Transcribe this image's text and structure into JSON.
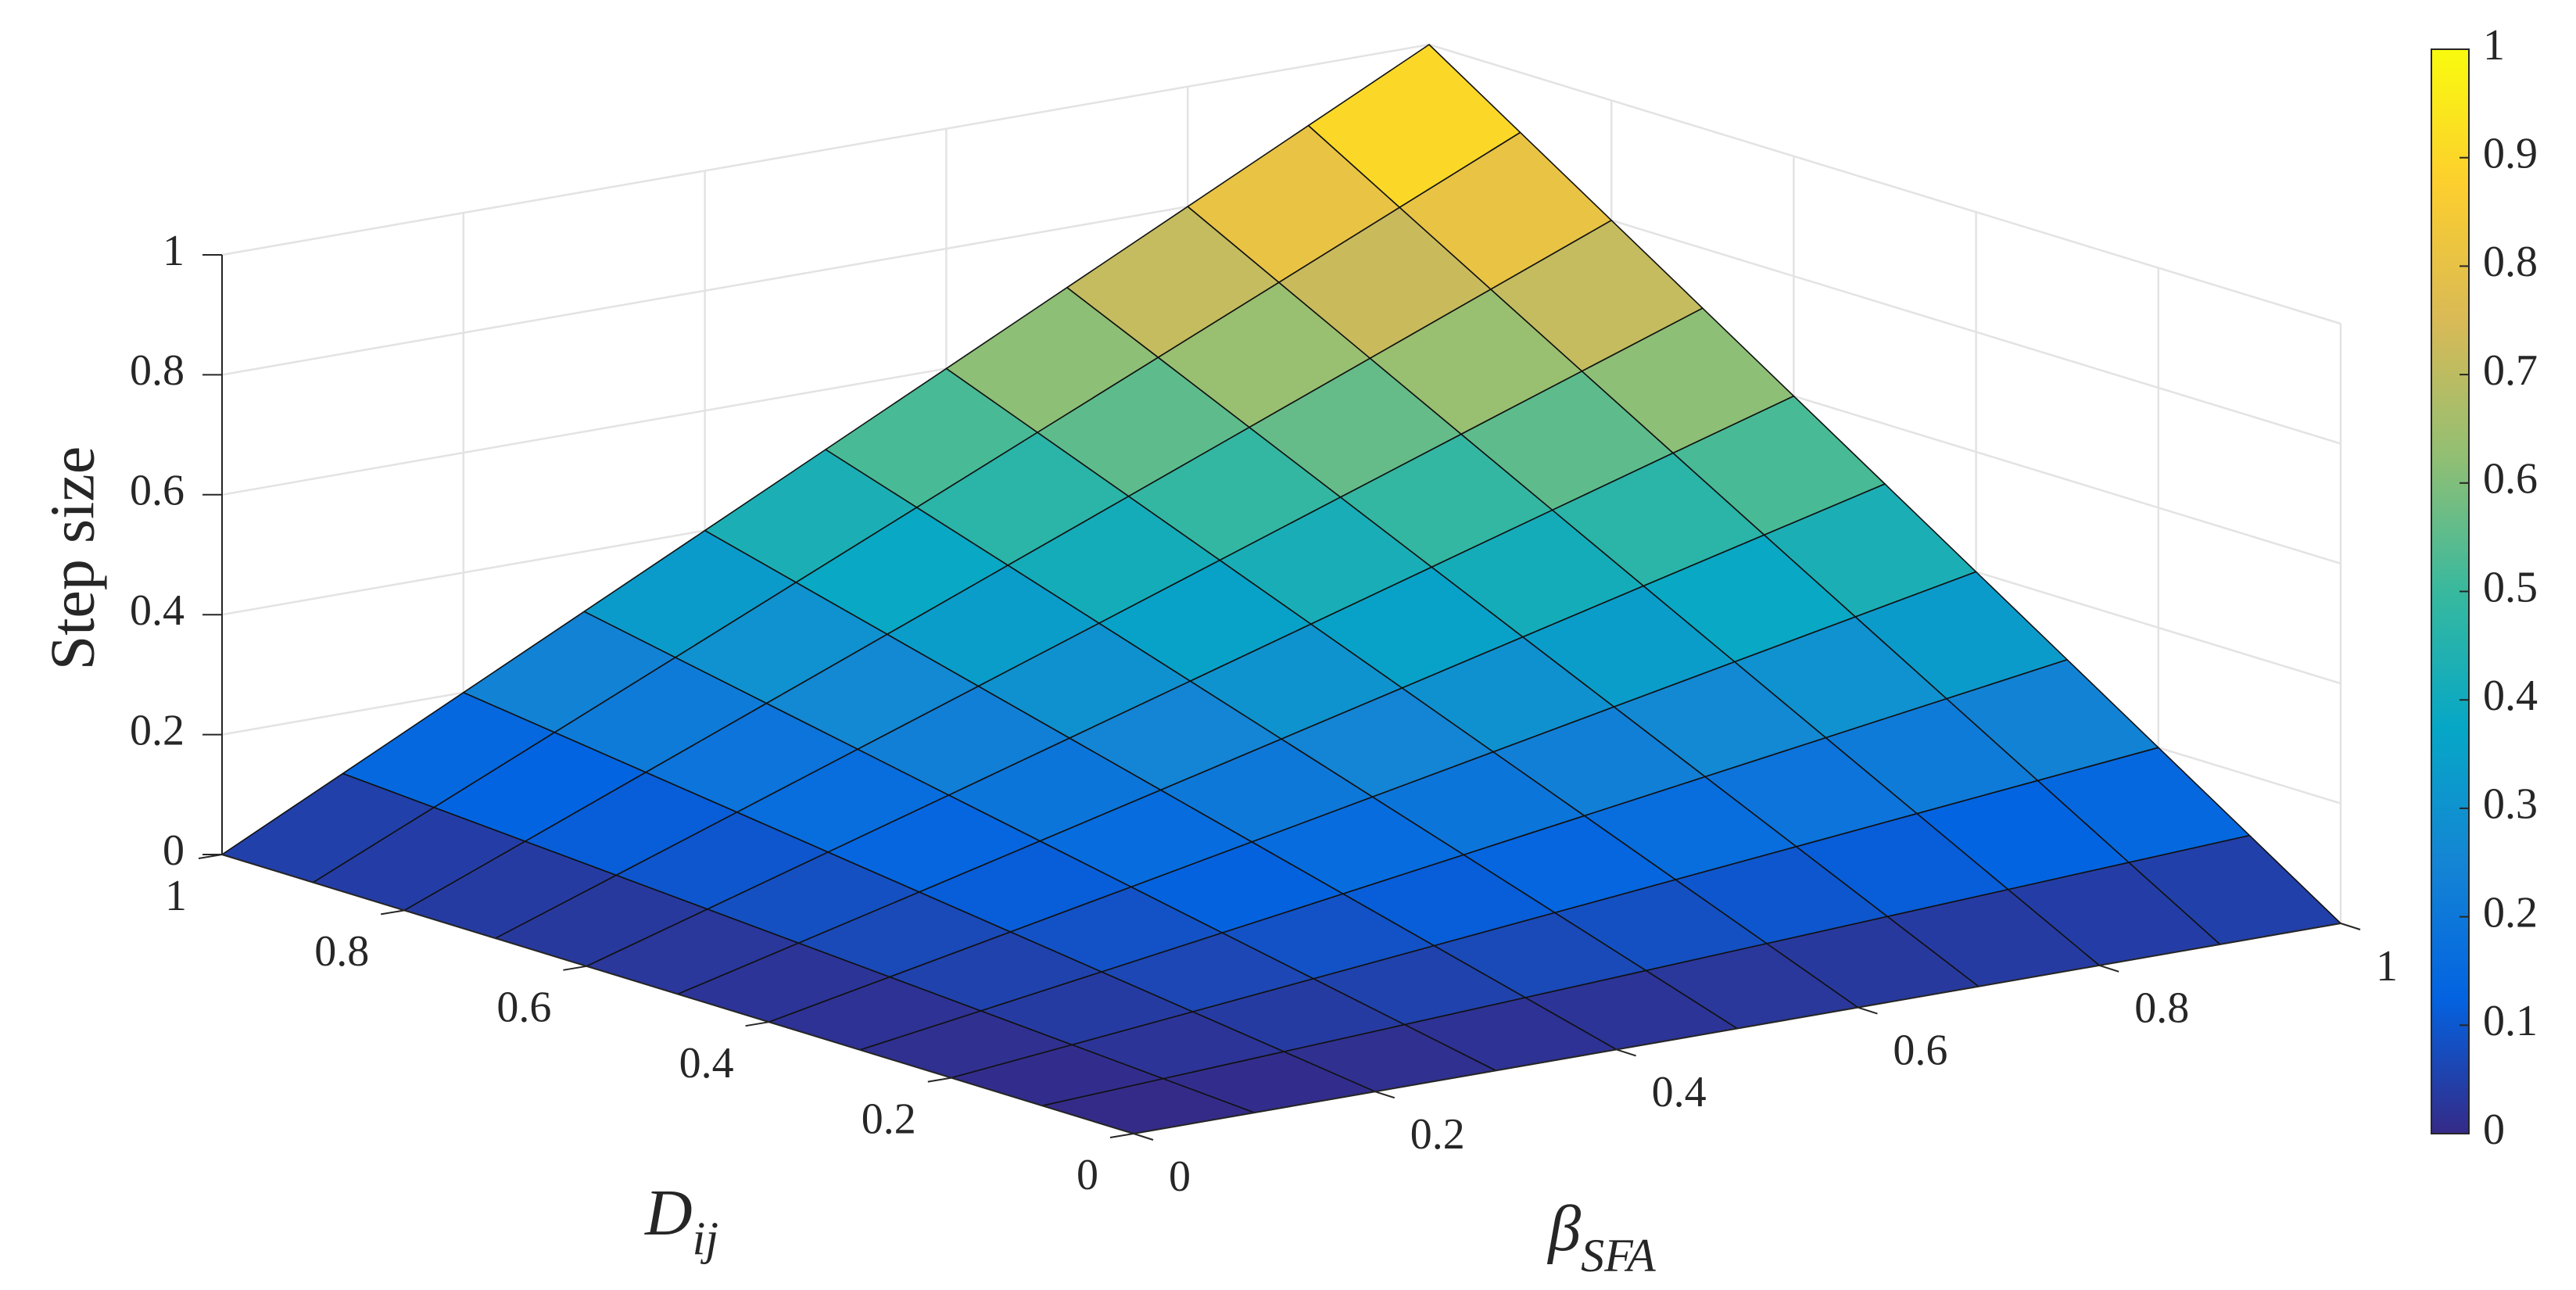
{
  "chart_data": {
    "type": "surface",
    "xlabel": {
      "text": "D",
      "subscript": "ij"
    },
    "ylabel": {
      "text": "β",
      "subscript": "SFA"
    },
    "zlabel": "Step size",
    "x": [
      0,
      0.1,
      0.2,
      0.3,
      0.4,
      0.5,
      0.6,
      0.7,
      0.8,
      0.9,
      1
    ],
    "y": [
      0,
      0.1,
      0.2,
      0.3,
      0.4,
      0.5,
      0.6,
      0.7,
      0.8,
      0.9,
      1
    ],
    "z": [
      [
        0,
        0,
        0,
        0,
        0,
        0,
        0,
        0,
        0,
        0,
        0
      ],
      [
        0,
        0.01,
        0.02,
        0.03,
        0.04,
        0.05,
        0.06,
        0.07,
        0.08,
        0.09,
        0.1
      ],
      [
        0,
        0.02,
        0.04,
        0.06,
        0.08,
        0.1,
        0.12,
        0.14,
        0.16,
        0.18,
        0.2
      ],
      [
        0,
        0.03,
        0.06,
        0.09,
        0.12,
        0.15,
        0.18,
        0.21,
        0.24,
        0.27,
        0.3
      ],
      [
        0,
        0.04,
        0.08,
        0.12,
        0.16,
        0.2,
        0.24,
        0.28,
        0.32,
        0.36,
        0.4
      ],
      [
        0,
        0.05,
        0.1,
        0.15,
        0.2,
        0.25,
        0.3,
        0.35,
        0.4,
        0.45,
        0.5
      ],
      [
        0,
        0.06,
        0.12,
        0.18,
        0.24,
        0.3,
        0.36,
        0.42,
        0.48,
        0.54,
        0.6
      ],
      [
        0,
        0.07,
        0.14,
        0.21,
        0.28,
        0.35,
        0.42,
        0.49,
        0.56,
        0.63,
        0.7
      ],
      [
        0,
        0.08,
        0.16,
        0.24,
        0.32,
        0.4,
        0.48,
        0.56,
        0.64,
        0.72,
        0.8
      ],
      [
        0,
        0.09,
        0.18,
        0.27,
        0.36,
        0.45,
        0.54,
        0.63,
        0.72,
        0.81,
        0.9
      ],
      [
        0,
        0.1,
        0.2,
        0.3,
        0.4,
        0.5,
        0.6,
        0.7,
        0.8,
        0.9,
        1
      ]
    ],
    "xlim": [
      0,
      1
    ],
    "ylim": [
      0,
      1
    ],
    "zlim": [
      0,
      1
    ],
    "xticks": [
      0,
      0.2,
      0.4,
      0.6,
      0.8,
      1
    ],
    "yticks": [
      0,
      0.2,
      0.4,
      0.6,
      0.8,
      1
    ],
    "zticks": [
      0,
      0.2,
      0.4,
      0.6,
      0.8,
      1
    ],
    "clim": [
      0,
      1
    ],
    "cticks": [
      0,
      0.1,
      0.2,
      0.3,
      0.4,
      0.5,
      0.6,
      0.7,
      0.8,
      0.9,
      1
    ],
    "colormap": [
      "#352a87",
      "#0363e1",
      "#1485d4",
      "#06a7c6",
      "#38b99e",
      "#92bf73",
      "#d9ba56",
      "#fcce2e",
      "#f9fb0e"
    ],
    "grid": true,
    "colorbar": true
  }
}
